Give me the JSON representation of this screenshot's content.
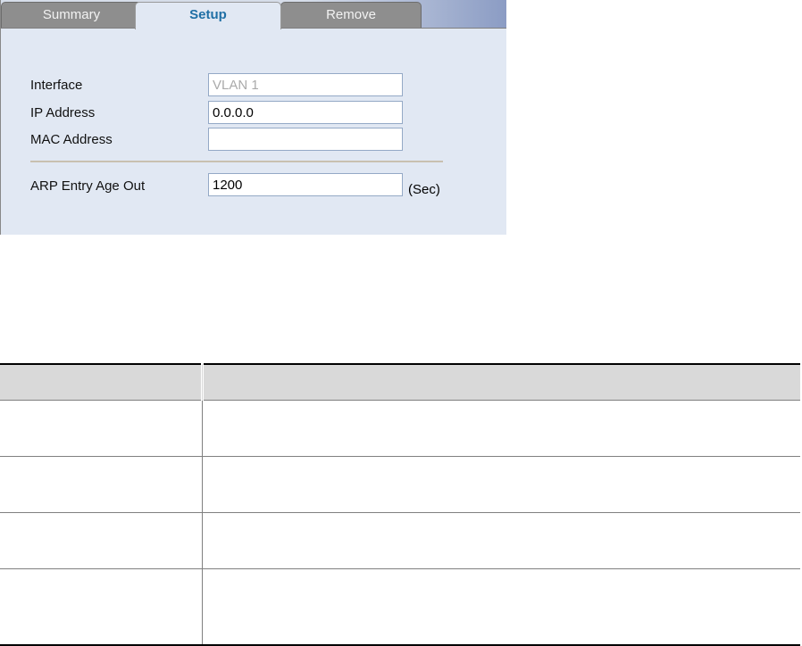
{
  "tabs": [
    {
      "label": "Summary"
    },
    {
      "label": "Setup",
      "active": true
    },
    {
      "label": "Remove"
    }
  ],
  "form": {
    "interface": {
      "label": "Interface",
      "value": "VLAN 1"
    },
    "ip": {
      "label": "IP Address",
      "value": "0.0.0.0"
    },
    "mac": {
      "label": "MAC Address",
      "value": ""
    },
    "arp": {
      "label": "ARP Entry Age Out",
      "value": "1200",
      "unit": "(Sec)"
    }
  },
  "table": {
    "headers": [
      "",
      ""
    ],
    "rows": [
      [
        "",
        ""
      ],
      [
        "",
        ""
      ],
      [
        "",
        ""
      ],
      [
        "",
        ""
      ]
    ]
  },
  "colors": {
    "panel_bg": "#e1e8f3",
    "active_tab_text": "#1f6fa5",
    "tab_bg": "#8e8e8e",
    "header_bg": "#d9d9d9"
  }
}
